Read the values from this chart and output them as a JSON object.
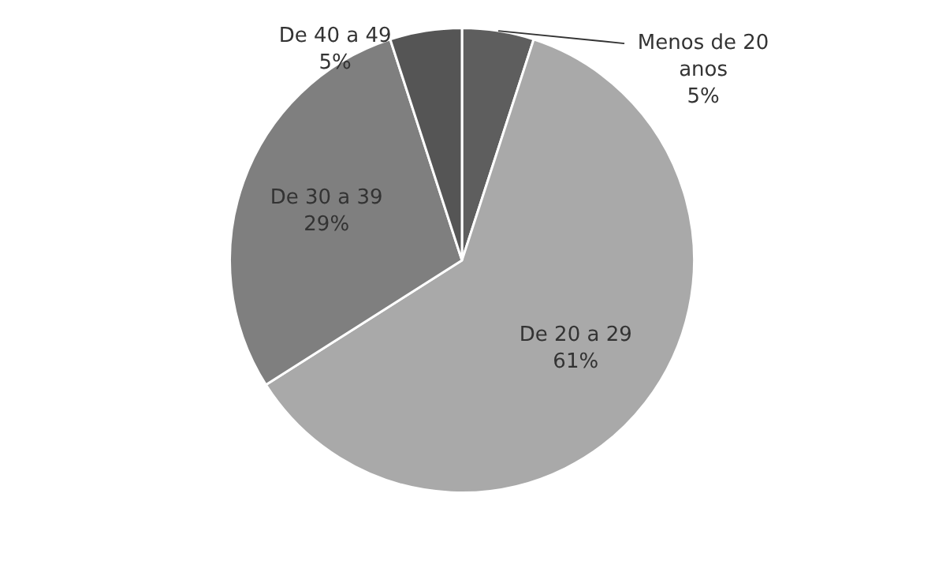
{
  "chart_data": {
    "type": "pie",
    "categories": [
      "Menos de 20 anos",
      "De 20 a 29",
      "De 30 a 39",
      "De 40 a 49"
    ],
    "values": [
      5,
      61,
      29,
      5
    ],
    "value_labels": [
      "5%",
      "61%",
      "29%",
      "5%"
    ],
    "colors": [
      "#5e5e5e",
      "#a9a9a9",
      "#7f7f7f",
      "#555555"
    ],
    "legend": false
  }
}
